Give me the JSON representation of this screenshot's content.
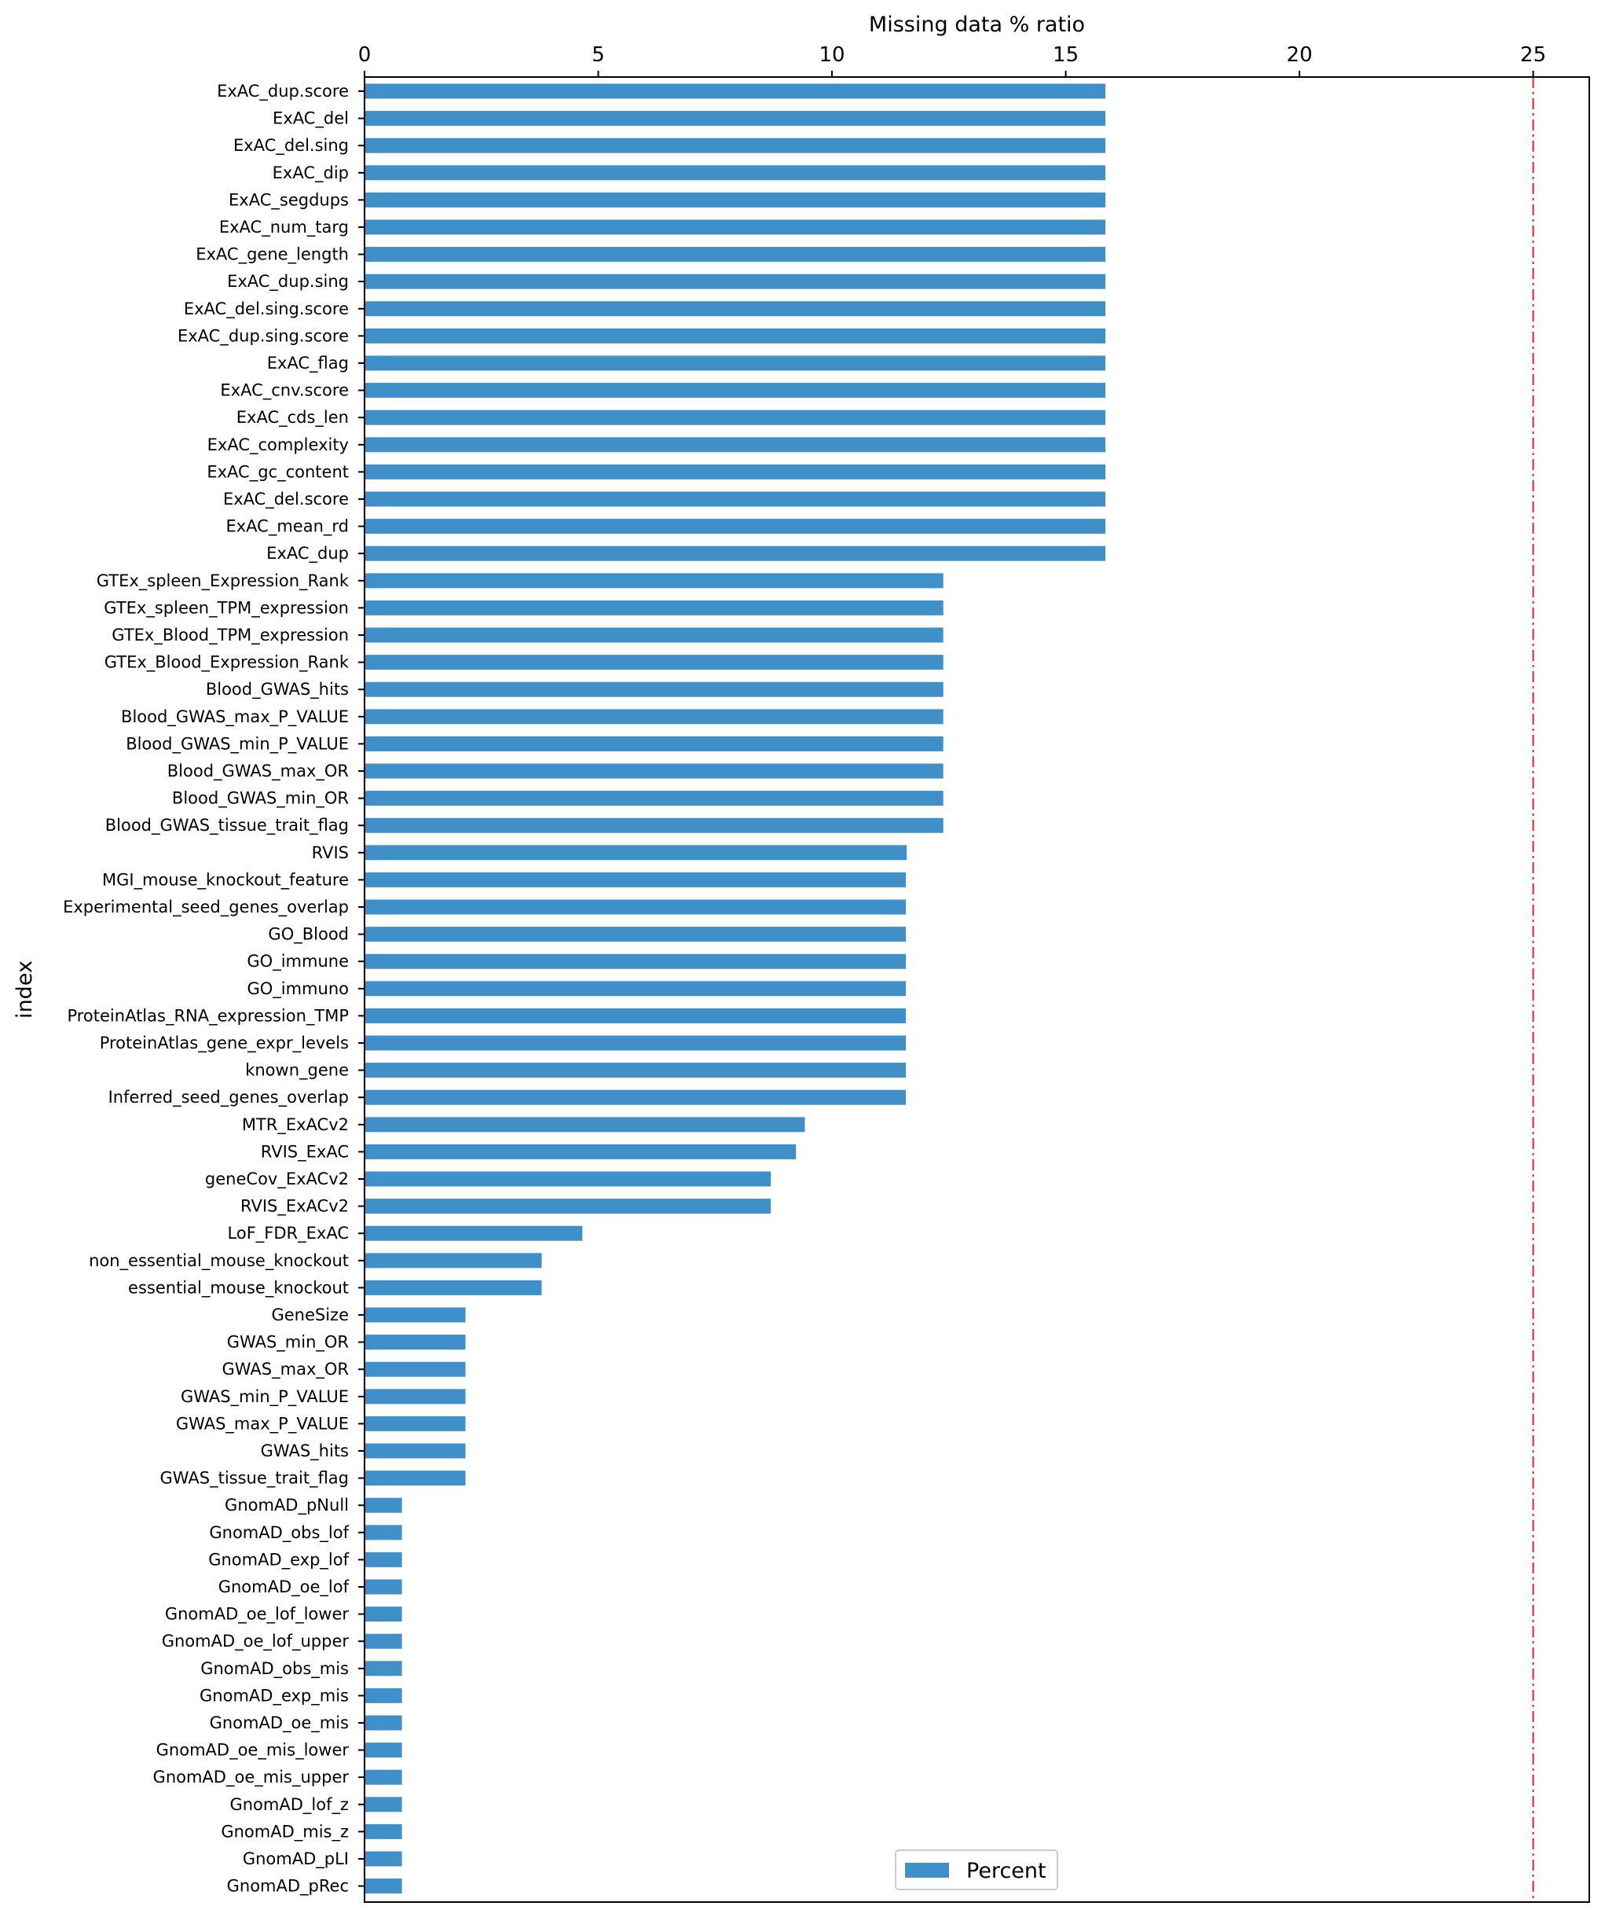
{
  "chart_data": {
    "type": "bar",
    "orientation": "horizontal",
    "title": "",
    "xlabel": "Missing data % ratio",
    "ylabel": "index",
    "xlim": [
      0,
      26.2
    ],
    "xticks": [
      0,
      5,
      10,
      15,
      20,
      25
    ],
    "xaxis_position": "top",
    "threshold_line": {
      "value": 25,
      "color": "#d62728",
      "style": "dash-dot"
    },
    "bar_color": "#3f8fc9",
    "legend": {
      "entries": [
        "Percent"
      ],
      "position": "bottom-center"
    },
    "series": [
      {
        "name": "Percent",
        "values": [
          15.85,
          15.85,
          15.85,
          15.85,
          15.85,
          15.85,
          15.85,
          15.85,
          15.85,
          15.85,
          15.85,
          15.85,
          15.85,
          15.85,
          15.85,
          15.85,
          15.85,
          15.85,
          12.38,
          12.38,
          12.38,
          12.38,
          12.38,
          12.38,
          12.38,
          12.38,
          12.38,
          12.38,
          11.6,
          11.58,
          11.58,
          11.58,
          11.58,
          11.58,
          11.58,
          11.58,
          11.58,
          11.58,
          9.42,
          9.23,
          8.69,
          8.69,
          4.66,
          3.79,
          3.79,
          2.16,
          2.16,
          2.16,
          2.16,
          2.16,
          2.16,
          2.16,
          0.8,
          0.8,
          0.8,
          0.8,
          0.8,
          0.8,
          0.8,
          0.8,
          0.8,
          0.8,
          0.8,
          0.8,
          0.8,
          0.8,
          0.8
        ]
      }
    ],
    "categories": [
      "ExAC_dup.score",
      "ExAC_del",
      "ExAC_del.sing",
      "ExAC_dip",
      "ExAC_segdups",
      "ExAC_num_targ",
      "ExAC_gene_length",
      "ExAC_dup.sing",
      "ExAC_del.sing.score",
      "ExAC_dup.sing.score",
      "ExAC_flag",
      "ExAC_cnv.score",
      "ExAC_cds_len",
      "ExAC_complexity",
      "ExAC_gc_content",
      "ExAC_del.score",
      "ExAC_mean_rd",
      "ExAC_dup",
      "GTEx_spleen_Expression_Rank",
      "GTEx_spleen_TPM_expression",
      "GTEx_Blood_TPM_expression",
      "GTEx_Blood_Expression_Rank",
      "Blood_GWAS_hits",
      "Blood_GWAS_max_P_VALUE",
      "Blood_GWAS_min_P_VALUE",
      "Blood_GWAS_max_OR",
      "Blood_GWAS_min_OR",
      "Blood_GWAS_tissue_trait_flag",
      "RVIS",
      "MGI_mouse_knockout_feature",
      "Experimental_seed_genes_overlap",
      "GO_Blood",
      "GO_immune",
      "GO_immuno",
      "ProteinAtlas_RNA_expression_TMP",
      "ProteinAtlas_gene_expr_levels",
      "known_gene",
      "Inferred_seed_genes_overlap",
      "MTR_ExACv2",
      "RVIS_ExAC",
      "geneCov_ExACv2",
      "RVIS_ExACv2",
      "LoF_FDR_ExAC",
      "non_essential_mouse_knockout",
      "essential_mouse_knockout",
      "GeneSize",
      "GWAS_min_OR",
      "GWAS_max_OR",
      "GWAS_min_P_VALUE",
      "GWAS_max_P_VALUE",
      "GWAS_hits",
      "GWAS_tissue_trait_flag",
      "GnomAD_pNull",
      "GnomAD_obs_lof",
      "GnomAD_exp_lof",
      "GnomAD_oe_lof",
      "GnomAD_oe_lof_lower",
      "GnomAD_oe_lof_upper",
      "GnomAD_obs_mis",
      "GnomAD_exp_mis",
      "GnomAD_oe_mis",
      "GnomAD_oe_mis_lower",
      "GnomAD_oe_mis_upper",
      "GnomAD_lof_z",
      "GnomAD_mis_z",
      "GnomAD_pLI",
      "GnomAD_pRec"
    ]
  }
}
